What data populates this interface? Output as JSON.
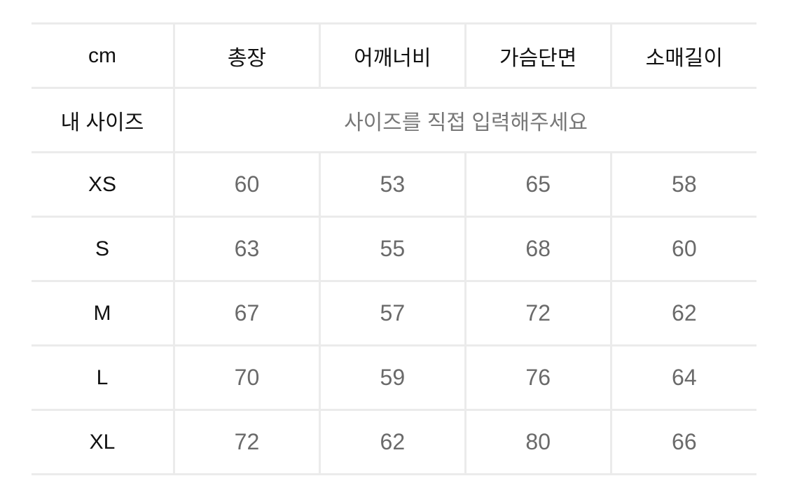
{
  "table": {
    "unit_label": "cm",
    "columns": [
      "총장",
      "어깨너비",
      "가슴단면",
      "소매길이"
    ],
    "my_size": {
      "label": "내 사이즈",
      "placeholder": "사이즈를 직접 입력해주세요"
    },
    "rows": [
      {
        "size": "XS",
        "values": [
          "60",
          "53",
          "65",
          "58"
        ]
      },
      {
        "size": "S",
        "values": [
          "63",
          "55",
          "68",
          "60"
        ]
      },
      {
        "size": "M",
        "values": [
          "67",
          "57",
          "72",
          "62"
        ]
      },
      {
        "size": "L",
        "values": [
          "70",
          "59",
          "76",
          "64"
        ]
      },
      {
        "size": "XL",
        "values": [
          "72",
          "62",
          "80",
          "66"
        ]
      }
    ]
  },
  "colors": {
    "border": "#ebebeb",
    "value_text": "#6a6a6a",
    "header_text": "#111111"
  }
}
